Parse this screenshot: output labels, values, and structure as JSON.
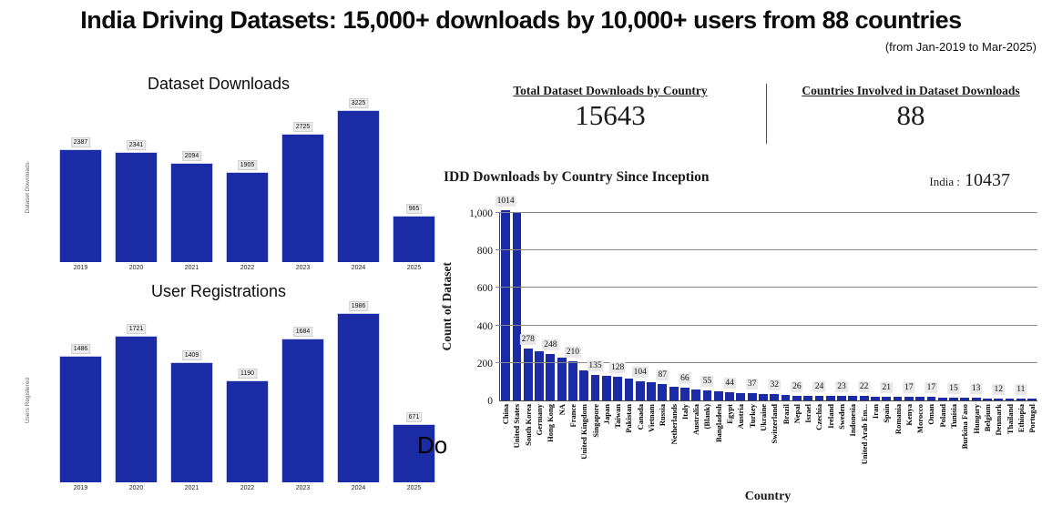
{
  "header": {
    "title": "India Driving Datasets: 15,000+ downloads by 10,000+ users from 88 countries",
    "subtitle": "(from Jan-2019 to Mar-2025)"
  },
  "colors": {
    "bar_blue": "#1b2aa5",
    "label_box_bg": "#ececec",
    "gridline": "#8a8a8a"
  },
  "stats": [
    {
      "label": "Total Dataset Downloads by Country",
      "value": "15643"
    },
    {
      "label": "Countries Involved in Dataset Downloads",
      "value": "88"
    }
  ],
  "stray_text": "Do",
  "chart_data": [
    {
      "type": "bar",
      "title": "Dataset Downloads",
      "ylabel": "Dataset Downloads",
      "xlabel": "",
      "categories": [
        "2019",
        "2020",
        "2021",
        "2022",
        "2023",
        "2024",
        "2025"
      ],
      "values": [
        2387,
        2341,
        2094,
        1905,
        2725,
        3225,
        965
      ],
      "ylim": [
        0,
        3400
      ],
      "grid": false,
      "data_labels": true
    },
    {
      "type": "bar",
      "title": "User Registrations",
      "ylabel": "Users Registered",
      "xlabel": "",
      "categories": [
        "2019",
        "2020",
        "2021",
        "2022",
        "2023",
        "2024",
        "2025"
      ],
      "values": [
        1486,
        1721,
        1409,
        1190,
        1684,
        1986,
        671
      ],
      "ylim": [
        0,
        2100
      ],
      "grid": false,
      "data_labels": true
    },
    {
      "type": "bar",
      "title": "IDD Downloads by Country Since Inception",
      "annotation": {
        "label": "India :",
        "value": "10437"
      },
      "xlabel": "Country",
      "ylabel": "Count of Dataset",
      "ylim": [
        0,
        1050
      ],
      "yticks": [
        "0",
        "200",
        "400",
        "600",
        "800",
        "1,000"
      ],
      "grid": true,
      "legend": "none",
      "categories": [
        "China",
        "United States",
        "South Korea",
        "Germany",
        "Hong Kong",
        "NA",
        "France",
        "United Kingdom",
        "Singapore",
        "Japan",
        "Taiwan",
        "Pakistan",
        "Canada",
        "Vietnam",
        "Russia",
        "Netherlands",
        "Italy",
        "Australia",
        "(Blank)",
        "Bangladesh",
        "Egypt",
        "Austria",
        "Turkey",
        "Ukraine",
        "Switzerland",
        "Brazil",
        "Nepal",
        "Israel",
        "Czechia",
        "Ireland",
        "Sweden",
        "Indonesia",
        "United Arab Em...",
        "Iran",
        "Spain",
        "Romania",
        "Kenya",
        "Morocco",
        "Oman",
        "Poland",
        "Tunisia",
        "Burkina Faso",
        "Hungary",
        "Belgium",
        "Denmark",
        "Thailand",
        "Ethiopia",
        "Portugal"
      ],
      "values": [
        1014,
        1000,
        278,
        263,
        248,
        228,
        210,
        160,
        135,
        132,
        128,
        115,
        104,
        95,
        87,
        75,
        66,
        60,
        55,
        49,
        44,
        41,
        37,
        34,
        32,
        29,
        26,
        25,
        24,
        23,
        23,
        22,
        22,
        21,
        21,
        19,
        17,
        17,
        17,
        16,
        15,
        14,
        13,
        12,
        12,
        11,
        11,
        10
      ],
      "shown_value_labels": [
        "1014",
        null,
        "278",
        null,
        "248",
        null,
        "210",
        null,
        "135",
        null,
        "128",
        null,
        "104",
        null,
        "87",
        null,
        "66",
        null,
        "55",
        null,
        "44",
        null,
        "37",
        null,
        "32",
        null,
        "26",
        null,
        "24",
        null,
        "23",
        null,
        "22",
        null,
        "21",
        null,
        "17",
        null,
        "17",
        null,
        "15",
        null,
        "13",
        null,
        "12",
        null,
        "11",
        null
      ]
    }
  ]
}
